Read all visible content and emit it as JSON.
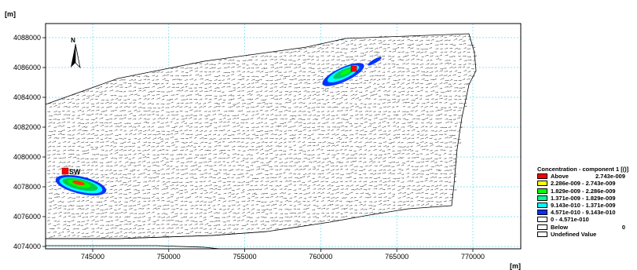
{
  "axes": {
    "y_unit": "[m]",
    "x_unit": "[m]",
    "x_ticks": [
      "745000",
      "750000",
      "755000",
      "760000",
      "765000",
      "770000"
    ],
    "y_ticks": [
      "4074000",
      "4076000",
      "4078000",
      "4080000",
      "4082000",
      "4084000",
      "4086000",
      "4088000"
    ]
  },
  "map": {
    "north_label": "N",
    "station_label": "SW",
    "field": "Concentration - component 1",
    "grid": true
  },
  "legend": {
    "title": "Concentration - component 1 [()]",
    "entries": [
      {
        "label": "Above",
        "value": "2.743e-009",
        "color": "#ff0000"
      },
      {
        "label": "2.286e-009 - 2.743e-009",
        "value": "",
        "color": "#ffff00"
      },
      {
        "label": "1.829e-009 - 2.286e-009",
        "value": "",
        "color": "#00ff00"
      },
      {
        "label": "1.371e-009 - 1.829e-009",
        "value": "",
        "color": "#00ff99"
      },
      {
        "label": "9.143e-010 - 1.371e-009",
        "value": "",
        "color": "#00ffff"
      },
      {
        "label": "4.571e-010 - 9.143e-010",
        "value": "",
        "color": "#0033ff"
      },
      {
        "label": "0 - 4.571e-010",
        "value": "",
        "color": "#ffffff"
      },
      {
        "label": "Below",
        "value": "0",
        "color": "#ffffff"
      },
      {
        "label": "Undefined Value",
        "value": "",
        "color": "#ffffff"
      }
    ]
  }
}
